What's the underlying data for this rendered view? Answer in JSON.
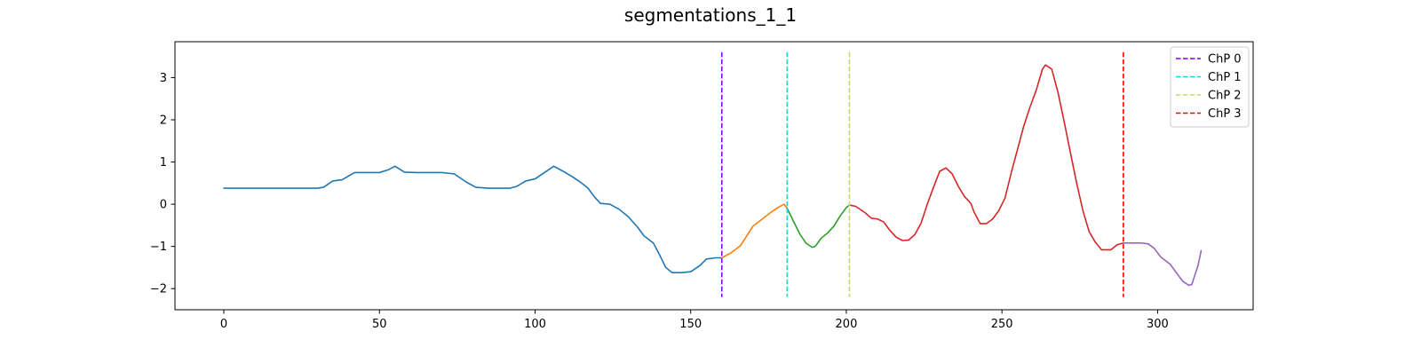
{
  "chart_data": {
    "type": "line",
    "title": "segmentations_1_1",
    "xlabel": "",
    "ylabel": "",
    "xlim": [
      -15.7,
      330.7
    ],
    "ylim": [
      -2.5,
      3.85
    ],
    "xticks": [
      0,
      50,
      100,
      150,
      200,
      250,
      300
    ],
    "yticks": [
      -2,
      -1,
      0,
      1,
      2,
      3
    ],
    "grid": false,
    "legend_position": "top-right",
    "segments": [
      {
        "name": "segment-0",
        "color": "#1f77b4",
        "points": [
          [
            0,
            0.38
          ],
          [
            5,
            0.38
          ],
          [
            10,
            0.38
          ],
          [
            15,
            0.38
          ],
          [
            20,
            0.38
          ],
          [
            25,
            0.38
          ],
          [
            30,
            0.38
          ],
          [
            32,
            0.4
          ],
          [
            35,
            0.55
          ],
          [
            38,
            0.58
          ],
          [
            42,
            0.75
          ],
          [
            46,
            0.75
          ],
          [
            50,
            0.75
          ],
          [
            53,
            0.82
          ],
          [
            55,
            0.9
          ],
          [
            58,
            0.76
          ],
          [
            62,
            0.75
          ],
          [
            66,
            0.75
          ],
          [
            70,
            0.75
          ],
          [
            74,
            0.72
          ],
          [
            78,
            0.52
          ],
          [
            81,
            0.4
          ],
          [
            85,
            0.38
          ],
          [
            89,
            0.38
          ],
          [
            92,
            0.38
          ],
          [
            94,
            0.42
          ],
          [
            97,
            0.55
          ],
          [
            100,
            0.6
          ],
          [
            103,
            0.75
          ],
          [
            106,
            0.9
          ],
          [
            109,
            0.78
          ],
          [
            112,
            0.65
          ],
          [
            115,
            0.5
          ],
          [
            117,
            0.38
          ],
          [
            119,
            0.18
          ],
          [
            121,
            0.02
          ],
          [
            124,
            0.0
          ],
          [
            127,
            -0.12
          ],
          [
            130,
            -0.3
          ],
          [
            133,
            -0.55
          ],
          [
            135,
            -0.75
          ],
          [
            138,
            -0.92
          ],
          [
            140,
            -1.2
          ],
          [
            142,
            -1.5
          ],
          [
            144,
            -1.62
          ],
          [
            147,
            -1.62
          ],
          [
            150,
            -1.6
          ],
          [
            153,
            -1.45
          ],
          [
            155,
            -1.3
          ],
          [
            158,
            -1.27
          ],
          [
            160,
            -1.27
          ]
        ]
      },
      {
        "name": "segment-1",
        "color": "#ff7f0e",
        "points": [
          [
            160,
            -1.27
          ],
          [
            163,
            -1.15
          ],
          [
            166,
            -0.98
          ],
          [
            168,
            -0.75
          ],
          [
            170,
            -0.52
          ],
          [
            173,
            -0.35
          ],
          [
            176,
            -0.18
          ],
          [
            178,
            -0.08
          ],
          [
            180,
            0.0
          ],
          [
            181,
            -0.1
          ]
        ]
      },
      {
        "name": "segment-2",
        "color": "#2ca02c",
        "points": [
          [
            181,
            -0.1
          ],
          [
            183,
            -0.4
          ],
          [
            185,
            -0.7
          ],
          [
            187,
            -0.92
          ],
          [
            189,
            -1.02
          ],
          [
            190,
            -1.0
          ],
          [
            192,
            -0.8
          ],
          [
            194,
            -0.68
          ],
          [
            196,
            -0.52
          ],
          [
            198,
            -0.28
          ],
          [
            200,
            -0.08
          ],
          [
            201,
            -0.02
          ]
        ]
      },
      {
        "name": "segment-3",
        "color": "#d62728",
        "points": [
          [
            201,
            -0.02
          ],
          [
            203,
            -0.05
          ],
          [
            206,
            -0.2
          ],
          [
            208,
            -0.33
          ],
          [
            210,
            -0.35
          ],
          [
            212,
            -0.42
          ],
          [
            214,
            -0.62
          ],
          [
            216,
            -0.78
          ],
          [
            218,
            -0.86
          ],
          [
            220,
            -0.85
          ],
          [
            222,
            -0.72
          ],
          [
            224,
            -0.45
          ],
          [
            226,
            0.0
          ],
          [
            228,
            0.4
          ],
          [
            230,
            0.78
          ],
          [
            232,
            0.86
          ],
          [
            234,
            0.72
          ],
          [
            236,
            0.42
          ],
          [
            238,
            0.18
          ],
          [
            240,
            0.02
          ],
          [
            241,
            -0.18
          ],
          [
            243,
            -0.46
          ],
          [
            245,
            -0.46
          ],
          [
            247,
            -0.35
          ],
          [
            249,
            -0.15
          ],
          [
            251,
            0.15
          ],
          [
            253,
            0.75
          ],
          [
            255,
            1.3
          ],
          [
            257,
            1.85
          ],
          [
            259,
            2.3
          ],
          [
            261,
            2.7
          ],
          [
            263,
            3.2
          ],
          [
            264,
            3.3
          ],
          [
            266,
            3.2
          ],
          [
            268,
            2.65
          ],
          [
            270,
            1.95
          ],
          [
            272,
            1.22
          ],
          [
            274,
            0.5
          ],
          [
            276,
            -0.15
          ],
          [
            278,
            -0.65
          ],
          [
            280,
            -0.9
          ],
          [
            282,
            -1.08
          ],
          [
            285,
            -1.08
          ],
          [
            287,
            -0.96
          ],
          [
            289,
            -0.92
          ]
        ]
      },
      {
        "name": "segment-4",
        "color": "#9467bd",
        "points": [
          [
            289,
            -0.92
          ],
          [
            292,
            -0.92
          ],
          [
            295,
            -0.92
          ],
          [
            297,
            -0.94
          ],
          [
            299,
            -1.05
          ],
          [
            301,
            -1.25
          ],
          [
            304,
            -1.42
          ],
          [
            306,
            -1.62
          ],
          [
            308,
            -1.82
          ],
          [
            310,
            -1.92
          ],
          [
            311,
            -1.9
          ],
          [
            313,
            -1.45
          ],
          [
            314,
            -1.1
          ]
        ]
      }
    ],
    "changepoints": [
      {
        "label": "ChP 0",
        "x": 160,
        "color": "#7f00ff"
      },
      {
        "label": "ChP 1",
        "x": 181,
        "color": "#1ed0e0"
      },
      {
        "label": "ChP 2",
        "x": 201,
        "color": "#c4d96a"
      },
      {
        "label": "ChP 3",
        "x": 289,
        "color": "#ff0000"
      }
    ],
    "changepoint_yrange": [
      -2.2,
      3.6
    ]
  }
}
